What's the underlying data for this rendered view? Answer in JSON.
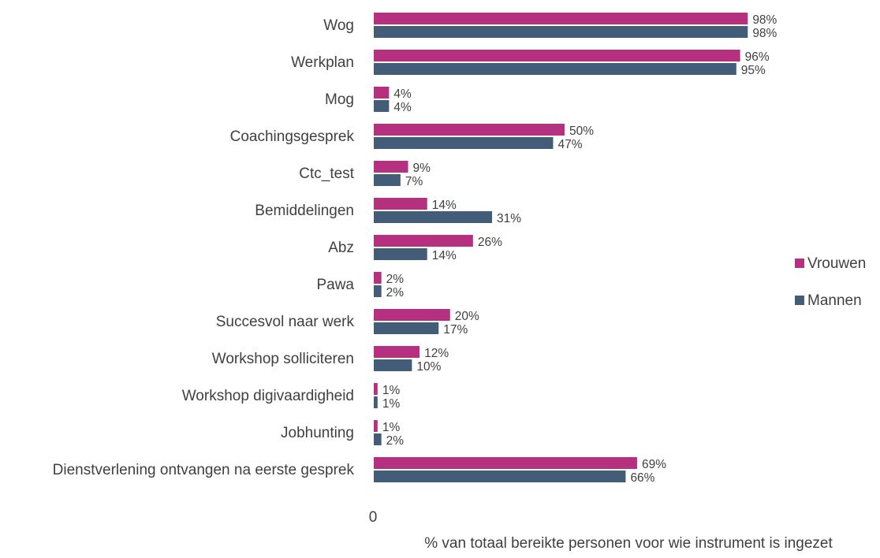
{
  "chart_data": {
    "type": "bar",
    "orientation": "horizontal",
    "categories": [
      "Wog",
      "Werkplan",
      "Mog",
      "Coachingsgesprek",
      "Ctc_test",
      "Bemiddelingen",
      "Abz",
      "Pawa",
      "Succesvol naar werk",
      "Workshop solliciteren",
      "Workshop digivaardigheid",
      "Jobhunting",
      "Dienstverlening ontvangen na eerste gesprek"
    ],
    "series": [
      {
        "name": "Vrouwen",
        "color": "#b5307f",
        "values": [
          98,
          96,
          4,
          50,
          9,
          14,
          26,
          2,
          20,
          12,
          1,
          1,
          69
        ]
      },
      {
        "name": "Mannen",
        "color": "#435d78",
        "values": [
          98,
          95,
          4,
          47,
          7,
          31,
          14,
          2,
          17,
          10,
          1,
          2,
          66
        ]
      }
    ],
    "value_suffix": "%",
    "xlabel": "% van totaal bereikte personen voor wie instrument is ingezet",
    "xticks": [
      "0"
    ],
    "xlim": [
      0,
      100
    ],
    "grid": false,
    "legend_position": "right"
  }
}
